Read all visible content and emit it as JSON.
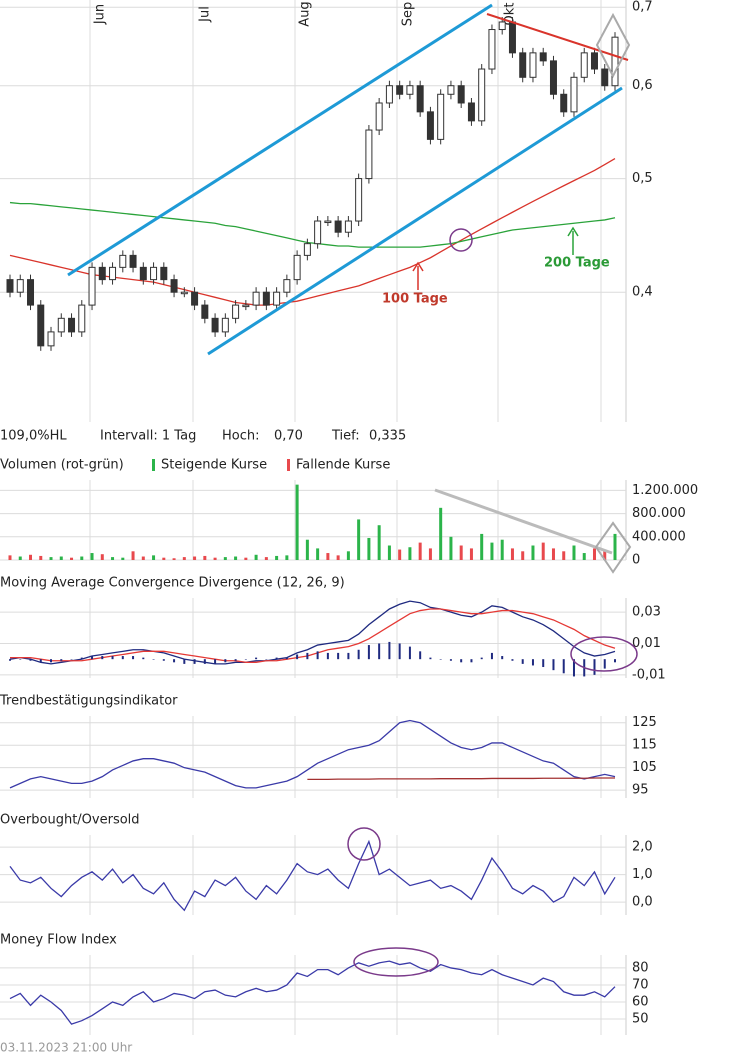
{
  "chart_data": [
    {
      "type": "candlestick",
      "log_scale": true,
      "months": [
        "Jun",
        "Jul",
        "Aug",
        "Sep",
        "Okt"
      ],
      "stats": [
        "109,0%HL",
        "Intervall: 1 Tag",
        "Hoch:",
        "0,70",
        "Tief:",
        "0,335"
      ],
      "up_color": "#ffffff",
      "down_color": "#333333",
      "open": [
        0.41,
        0.4,
        0.41,
        0.39,
        0.36,
        0.37,
        0.38,
        0.37,
        0.39,
        0.42,
        0.41,
        0.42,
        0.43,
        0.42,
        0.41,
        0.42,
        0.41,
        0.4,
        0.4,
        0.39,
        0.38,
        0.37,
        0.38,
        0.39,
        0.39,
        0.4,
        0.39,
        0.4,
        0.41,
        0.43,
        0.44,
        0.46,
        0.46,
        0.45,
        0.46,
        0.5,
        0.55,
        0.58,
        0.6,
        0.59,
        0.6,
        0.57,
        0.54,
        0.59,
        0.6,
        0.58,
        0.56,
        0.62,
        0.67,
        0.68,
        0.64,
        0.61,
        0.64,
        0.63,
        0.59,
        0.57,
        0.61,
        0.64,
        0.62,
        0.6
      ],
      "close": [
        0.4,
        0.41,
        0.39,
        0.36,
        0.37,
        0.38,
        0.37,
        0.39,
        0.42,
        0.41,
        0.42,
        0.43,
        0.42,
        0.41,
        0.42,
        0.41,
        0.4,
        0.4,
        0.39,
        0.38,
        0.37,
        0.38,
        0.39,
        0.39,
        0.4,
        0.39,
        0.4,
        0.41,
        0.43,
        0.44,
        0.46,
        0.46,
        0.45,
        0.46,
        0.5,
        0.55,
        0.58,
        0.6,
        0.59,
        0.6,
        0.57,
        0.54,
        0.59,
        0.6,
        0.58,
        0.56,
        0.62,
        0.67,
        0.68,
        0.64,
        0.61,
        0.64,
        0.63,
        0.59,
        0.57,
        0.61,
        0.64,
        0.62,
        0.6,
        0.66
      ],
      "series": [
        {
          "name": "100 Tage",
          "color": "#d9342b",
          "values": [
            0.43,
            0.428,
            0.426,
            0.424,
            0.422,
            0.42,
            0.418,
            0.416,
            0.414,
            0.413,
            0.412,
            0.411,
            0.41,
            0.409,
            0.408,
            0.406,
            0.404,
            0.402,
            0.4,
            0.398,
            0.396,
            0.394,
            0.392,
            0.391,
            0.39,
            0.39,
            0.391,
            0.392,
            0.393,
            0.395,
            0.397,
            0.399,
            0.401,
            0.403,
            0.405,
            0.408,
            0.411,
            0.414,
            0.417,
            0.42,
            0.424,
            0.428,
            0.433,
            0.438,
            0.443,
            0.448,
            0.453,
            0.458,
            0.463,
            0.468,
            0.473,
            0.478,
            0.483,
            0.488,
            0.493,
            0.498,
            0.503,
            0.508,
            0.514,
            0.52
          ]
        },
        {
          "name": "200 Tage",
          "color": "#2aa33a",
          "values": [
            0.477,
            0.476,
            0.476,
            0.475,
            0.474,
            0.473,
            0.472,
            0.471,
            0.47,
            0.469,
            0.468,
            0.467,
            0.466,
            0.465,
            0.464,
            0.463,
            0.462,
            0.461,
            0.46,
            0.459,
            0.458,
            0.456,
            0.455,
            0.453,
            0.451,
            0.449,
            0.447,
            0.445,
            0.443,
            0.441,
            0.44,
            0.439,
            0.438,
            0.438,
            0.437,
            0.437,
            0.437,
            0.437,
            0.437,
            0.437,
            0.437,
            0.438,
            0.439,
            0.44,
            0.442,
            0.444,
            0.446,
            0.448,
            0.45,
            0.452,
            0.453,
            0.454,
            0.455,
            0.456,
            0.457,
            0.458,
            0.459,
            0.46,
            0.461,
            0.463
          ]
        }
      ],
      "ylim": [
        0.31,
        0.71
      ],
      "yticks": [
        {
          "value": 0.7,
          "label": "0,7"
        },
        {
          "value": 0.6,
          "label": "0,6"
        },
        {
          "value": 0.5,
          "label": "0,5"
        },
        {
          "value": 0.4,
          "label": "0,4"
        }
      ]
    },
    {
      "type": "bar",
      "title": "Volumen (rot-grün)",
      "series": [
        {
          "name": "Steigende Kurse",
          "color": "#2bb44a",
          "values": [
            null,
            60000,
            null,
            null,
            50000,
            60000,
            null,
            60000,
            120000,
            null,
            50000,
            40000,
            null,
            null,
            80000,
            null,
            null,
            null,
            null,
            null,
            null,
            50000,
            60000,
            null,
            90000,
            null,
            70000,
            80000,
            1300000,
            350000,
            200000,
            null,
            null,
            150000,
            700000,
            380000,
            600000,
            250000,
            null,
            220000,
            null,
            null,
            900000,
            400000,
            null,
            null,
            450000,
            300000,
            350000,
            null,
            null,
            250000,
            null,
            null,
            null,
            250000,
            120000,
            null,
            null,
            450000
          ]
        },
        {
          "name": "Fallende Kurse",
          "color": "#e8494d",
          "values": [
            80000,
            null,
            90000,
            70000,
            null,
            null,
            40000,
            null,
            null,
            100000,
            null,
            null,
            150000,
            60000,
            null,
            40000,
            30000,
            50000,
            60000,
            70000,
            40000,
            null,
            null,
            40000,
            null,
            50000,
            null,
            null,
            null,
            null,
            null,
            120000,
            80000,
            null,
            null,
            null,
            null,
            null,
            180000,
            null,
            300000,
            200000,
            null,
            null,
            250000,
            200000,
            null,
            null,
            null,
            200000,
            150000,
            null,
            300000,
            200000,
            150000,
            null,
            null,
            200000,
            150000,
            null
          ]
        }
      ],
      "ylim": [
        0,
        1380000
      ],
      "yticks": [
        {
          "value": 1200000,
          "label": "1.200.000"
        },
        {
          "value": 800000,
          "label": "800.000"
        },
        {
          "value": 400000,
          "label": "400.000"
        },
        0
      ]
    },
    {
      "type": "line",
      "title": "Moving Average Convergence Divergence (12, 26, 9)",
      "series": [
        {
          "color": "#1f2a80",
          "values": [
            0.0,
            0.001,
            0.0,
            -0.002,
            -0.003,
            -0.002,
            -0.001,
            0.0,
            0.002,
            0.003,
            0.004,
            0.005,
            0.006,
            0.006,
            0.005,
            0.004,
            0.002,
            0.0,
            -0.001,
            -0.002,
            -0.003,
            -0.003,
            -0.002,
            -0.002,
            -0.001,
            -0.001,
            0.0,
            0.001,
            0.004,
            0.006,
            0.009,
            0.01,
            0.011,
            0.012,
            0.016,
            0.022,
            0.027,
            0.032,
            0.035,
            0.037,
            0.036,
            0.033,
            0.032,
            0.03,
            0.028,
            0.027,
            0.03,
            0.034,
            0.033,
            0.03,
            0.027,
            0.025,
            0.022,
            0.018,
            0.013,
            0.008,
            0.004,
            0.002,
            0.003,
            0.005
          ]
        },
        {
          "color": "#e53935",
          "values": [
            0.001,
            0.001,
            0.001,
            0.0,
            -0.001,
            -0.001,
            -0.001,
            -0.001,
            0.0,
            0.001,
            0.002,
            0.003,
            0.004,
            0.005,
            0.005,
            0.005,
            0.004,
            0.003,
            0.002,
            0.001,
            0.0,
            -0.001,
            -0.001,
            -0.002,
            -0.002,
            -0.001,
            -0.001,
            0.0,
            0.001,
            0.002,
            0.004,
            0.006,
            0.007,
            0.008,
            0.01,
            0.013,
            0.017,
            0.021,
            0.025,
            0.029,
            0.031,
            0.032,
            0.032,
            0.031,
            0.03,
            0.029,
            0.029,
            0.03,
            0.031,
            0.031,
            0.03,
            0.029,
            0.027,
            0.025,
            0.022,
            0.019,
            0.015,
            0.012,
            0.009,
            0.007
          ]
        },
        {
          "color": "#1f2a80",
          "style": "bar",
          "values": [
            -0.001,
            0.0,
            -0.001,
            -0.002,
            -0.002,
            -0.001,
            0.0,
            0.001,
            0.002,
            0.002,
            0.002,
            0.002,
            0.002,
            0.001,
            0.0,
            -0.001,
            -0.002,
            -0.003,
            -0.003,
            -0.003,
            -0.003,
            -0.002,
            -0.001,
            0.0,
            0.001,
            0.0,
            0.001,
            0.001,
            0.003,
            0.004,
            0.005,
            0.004,
            0.004,
            0.004,
            0.006,
            0.009,
            0.01,
            0.011,
            0.01,
            0.008,
            0.005,
            0.001,
            0.0,
            -0.001,
            -0.002,
            -0.002,
            0.001,
            0.004,
            0.002,
            -0.001,
            -0.003,
            -0.004,
            -0.005,
            -0.007,
            -0.009,
            -0.011,
            -0.011,
            -0.01,
            -0.006,
            -0.002
          ]
        }
      ],
      "ylim": [
        -0.012,
        0.039
      ],
      "yticks": [
        {
          "value": 0.03,
          "label": "0,03"
        },
        {
          "value": 0.01,
          "label": "0,01"
        },
        {
          "value": -0.01,
          "label": "-0,01"
        }
      ]
    },
    {
      "type": "line",
      "title": "Trendbestätigungsindikator",
      "series": [
        {
          "color": "#3a3aa8",
          "values": [
            96,
            98,
            100,
            101,
            100,
            99,
            98,
            98,
            99,
            101,
            104,
            106,
            108,
            109,
            109,
            108,
            107,
            105,
            104,
            103,
            101,
            99,
            97,
            96,
            96,
            97,
            98,
            99,
            101,
            104,
            107,
            109,
            111,
            113,
            114,
            115,
            117,
            121,
            125,
            126,
            125,
            122,
            119,
            116,
            114,
            113,
            114,
            116,
            116,
            114,
            112,
            110,
            108,
            107,
            104,
            101,
            100,
            101,
            102,
            101
          ]
        },
        {
          "color": "#a33030",
          "values": [
            null,
            null,
            null,
            null,
            null,
            null,
            null,
            null,
            null,
            null,
            null,
            null,
            null,
            null,
            null,
            null,
            null,
            null,
            null,
            null,
            null,
            null,
            null,
            null,
            null,
            null,
            null,
            null,
            null,
            99.8,
            99.8,
            99.8,
            99.9,
            99.9,
            99.9,
            99.9,
            100,
            100,
            100,
            100,
            100,
            100,
            100.1,
            100.1,
            100.1,
            100.1,
            100.1,
            100.2,
            100.2,
            100.2,
            100.2,
            100.2,
            100.3,
            100.3,
            100.3,
            100.3,
            100.3,
            100.4,
            100.4,
            100.4
          ]
        }
      ],
      "ylim": [
        91.5,
        128
      ],
      "yticks": [
        125,
        115,
        105,
        95
      ]
    },
    {
      "type": "line",
      "title": "Overbought/Oversold",
      "series": [
        {
          "color": "#3a3aa8",
          "values": [
            1.3,
            0.8,
            0.7,
            0.9,
            0.5,
            0.2,
            0.6,
            0.9,
            1.1,
            0.8,
            1.2,
            0.7,
            1.0,
            0.5,
            0.3,
            0.7,
            0.1,
            -0.3,
            0.4,
            0.2,
            0.8,
            0.6,
            0.9,
            0.4,
            0.1,
            0.6,
            0.3,
            0.8,
            1.4,
            1.1,
            1.0,
            1.2,
            0.8,
            0.5,
            1.4,
            2.2,
            1.0,
            1.2,
            0.9,
            0.6,
            0.7,
            0.8,
            0.5,
            0.6,
            0.4,
            0.1,
            0.8,
            1.6,
            1.1,
            0.5,
            0.3,
            0.6,
            0.4,
            0.0,
            0.2,
            0.9,
            0.6,
            1.1,
            0.3,
            0.9
          ]
        }
      ],
      "ylim": [
        -0.47,
        2.44
      ],
      "yticks": [
        {
          "value": 2,
          "label": "2,0"
        },
        {
          "value": 1,
          "label": "1,0"
        },
        {
          "value": 0,
          "label": "0,0"
        }
      ]
    },
    {
      "type": "line",
      "title": "Money Flow Index",
      "series": [
        {
          "color": "#3a3aa8",
          "values": [
            62,
            65,
            58,
            64,
            60,
            55,
            47,
            49,
            52,
            56,
            60,
            58,
            63,
            66,
            60,
            62,
            65,
            64,
            62,
            66,
            67,
            64,
            63,
            66,
            68,
            66,
            67,
            70,
            77,
            75,
            79,
            79,
            76,
            80,
            83,
            81,
            83,
            84,
            82,
            83,
            80,
            78,
            82,
            80,
            79,
            77,
            76,
            79,
            76,
            74,
            72,
            70,
            74,
            72,
            66,
            64,
            64,
            66,
            63,
            69
          ]
        }
      ],
      "ylim": [
        40.6,
        87.6
      ],
      "yticks": [
        80,
        70,
        60,
        50
      ]
    }
  ],
  "footer": "03.11.2023 21:00 Uhr"
}
